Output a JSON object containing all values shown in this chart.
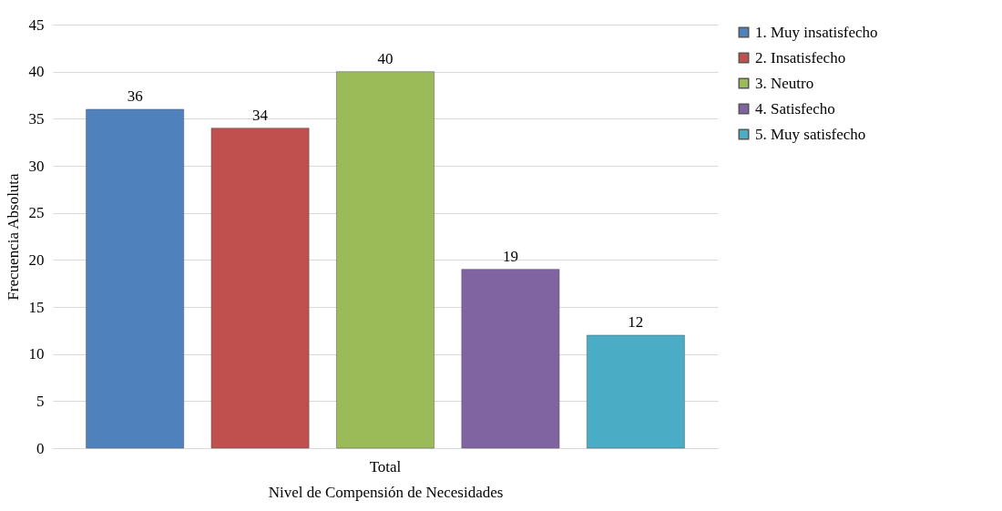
{
  "chart_data": {
    "type": "bar",
    "xlabel": "Nivel de Compensión de Necesidades",
    "ylabel": "Frecuencia Absoluta",
    "categories": [
      "Total"
    ],
    "series": [
      {
        "name": "1. Muy insatisfecho",
        "color": "#4f81bd",
        "values": [
          36
        ]
      },
      {
        "name": "2. Insatisfecho",
        "color": "#c0504d",
        "values": [
          34
        ]
      },
      {
        "name": "3. Neutro",
        "color": "#9bbb59",
        "values": [
          40
        ]
      },
      {
        "name": "4. Satisfecho",
        "color": "#8064a2",
        "values": [
          19
        ]
      },
      {
        "name": "5. Muy satisfecho",
        "color": "#4bacc6",
        "values": [
          12
        ]
      }
    ],
    "ylim": [
      0,
      45
    ],
    "yticks": [
      0,
      5,
      10,
      15,
      20,
      25,
      30,
      35,
      40,
      45
    ],
    "grid": "y",
    "legend": "right",
    "data_labels": true
  }
}
